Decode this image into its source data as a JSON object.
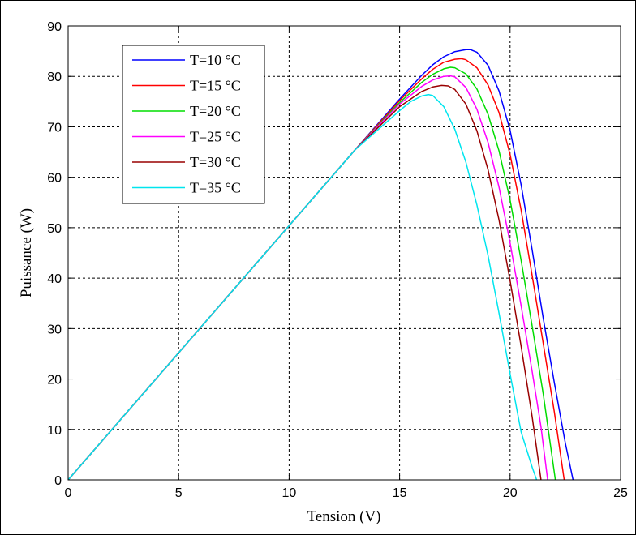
{
  "chart_data": {
    "type": "line",
    "title": "",
    "xlabel": "Tension (V)",
    "ylabel": "Puissance (W)",
    "xlim": [
      0,
      25
    ],
    "ylim": [
      0,
      90
    ],
    "xticks": [
      0,
      5,
      10,
      15,
      20,
      25
    ],
    "yticks": [
      0,
      10,
      20,
      30,
      40,
      50,
      60,
      70,
      80,
      90
    ],
    "grid": true,
    "legend_position": "top-left",
    "series": [
      {
        "name": "T=10 °C",
        "color": "#0000ff",
        "x": [
          0,
          5,
          10,
          13,
          15,
          16,
          16.5,
          17,
          17.5,
          18,
          18.2,
          18.5,
          19,
          19.5,
          20,
          20.5,
          21,
          21.5,
          22,
          22.5,
          22.85
        ],
        "y": [
          0,
          25.2,
          50.4,
          65.5,
          75.5,
          80.2,
          82.3,
          83.9,
          84.9,
          85.3,
          85.3,
          84.8,
          82.2,
          77.1,
          69.3,
          58.5,
          45.6,
          32.0,
          19.3,
          7.3,
          0
        ]
      },
      {
        "name": "T=15 °C",
        "color": "#ff0000",
        "x": [
          0,
          5,
          10,
          13,
          15,
          16,
          16.5,
          17,
          17.5,
          17.8,
          18,
          18.5,
          19,
          19.5,
          20,
          20.5,
          21,
          21.5,
          22,
          22.45
        ],
        "y": [
          0,
          25.2,
          50.4,
          65.5,
          75.2,
          79.5,
          81.4,
          82.8,
          83.4,
          83.5,
          83.3,
          81.7,
          78.3,
          72.8,
          64.5,
          53.5,
          40.5,
          27.0,
          13.5,
          0
        ]
      },
      {
        "name": "T=20 °C",
        "color": "#00dd00",
        "x": [
          0,
          5,
          10,
          13,
          15,
          16,
          16.5,
          17,
          17.3,
          17.5,
          18,
          18.5,
          19,
          19.5,
          20,
          20.5,
          21,
          21.5,
          22.05
        ],
        "y": [
          0,
          25.2,
          50.4,
          65.5,
          74.8,
          78.8,
          80.4,
          81.5,
          81.8,
          81.7,
          80.5,
          77.5,
          72.5,
          65.2,
          55.5,
          43.5,
          30.5,
          17.0,
          0
        ]
      },
      {
        "name": "T=25 °C",
        "color": "#ff00ff",
        "x": [
          0,
          5,
          10,
          13,
          15,
          16,
          16.5,
          17,
          17.3,
          17.5,
          18,
          18.5,
          19,
          19.5,
          20,
          20.5,
          21,
          21.4,
          21.7
        ],
        "y": [
          0,
          25.2,
          50.4,
          65.5,
          74.5,
          78.0,
          79.3,
          80.0,
          80.1,
          79.9,
          77.8,
          73.5,
          66.9,
          58.0,
          47.0,
          34.5,
          21.5,
          10.5,
          0
        ]
      },
      {
        "name": "T=30 °C",
        "color": "#990000",
        "x": [
          0,
          5,
          10,
          13,
          15,
          16,
          16.5,
          16.9,
          17.2,
          17.5,
          18,
          18.5,
          19,
          19.5,
          20,
          20.5,
          21,
          21.4
        ],
        "y": [
          0,
          25.2,
          50.4,
          65.5,
          74.0,
          77.0,
          77.9,
          78.2,
          78.1,
          77.4,
          74.5,
          69.2,
          61.5,
          51.5,
          39.5,
          26.5,
          12.5,
          0
        ]
      },
      {
        "name": "T=35 °C",
        "color": "#00e5ee",
        "x": [
          0,
          5,
          10,
          13,
          15,
          15.5,
          16,
          16.3,
          16.5,
          17,
          17.5,
          18,
          18.5,
          19,
          19.5,
          20,
          20.5,
          21,
          21.2
        ],
        "y": [
          0,
          25.2,
          50.4,
          65.5,
          73.2,
          75.0,
          76.1,
          76.4,
          76.2,
          74.0,
          69.5,
          63.0,
          54.5,
          44.5,
          33.0,
          21.0,
          9.5,
          2.5,
          0
        ]
      }
    ]
  }
}
